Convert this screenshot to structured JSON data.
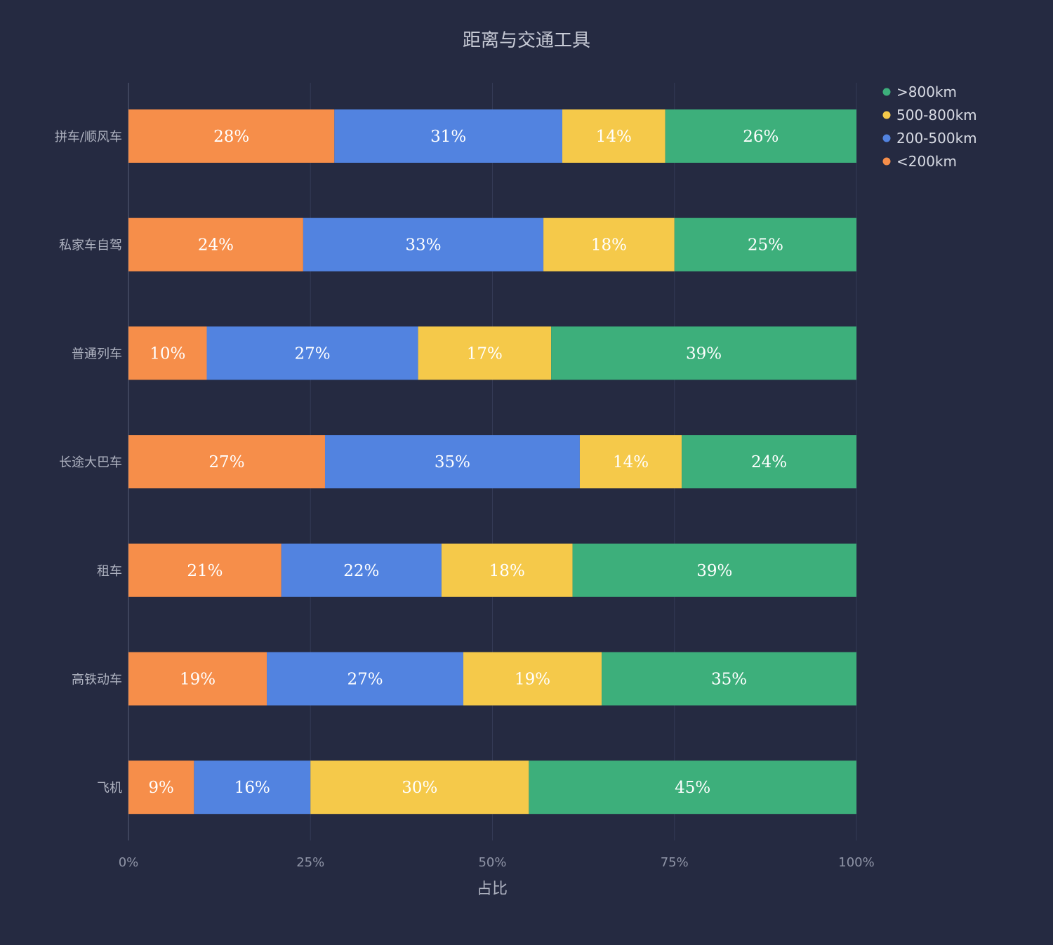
{
  "chart_data": {
    "type": "bar",
    "orientation": "horizontal",
    "stacked": true,
    "title": "距离与交通工具",
    "xlabel": "占比",
    "ylabel": "",
    "xlim": [
      0,
      100
    ],
    "xticks": [
      "0%",
      "25%",
      "50%",
      "75%",
      "100%"
    ],
    "grid": true,
    "legend_position": "top-right",
    "categories": [
      "拼车/顺风车",
      "私家车自驾",
      "普通列车",
      "长途大巴车",
      "租车",
      "高铁动车",
      "飞机"
    ],
    "series": [
      {
        "name": "<200km",
        "color": "#f68e4a",
        "values": [
          28,
          24,
          10,
          27,
          21,
          19,
          9
        ]
      },
      {
        "name": "200-500km",
        "color": "#5283e0",
        "values": [
          31,
          33,
          27,
          35,
          22,
          27,
          16
        ]
      },
      {
        "name": "500-800km",
        "color": "#f5c94a",
        "values": [
          14,
          18,
          17,
          14,
          18,
          19,
          30
        ]
      },
      {
        "name": ">800km",
        "color": "#3daf7b",
        "values": [
          26,
          25,
          39,
          24,
          39,
          35,
          45
        ]
      }
    ],
    "legend_order": [
      ">800km",
      "500-800km",
      "200-500km",
      "<200km"
    ]
  }
}
